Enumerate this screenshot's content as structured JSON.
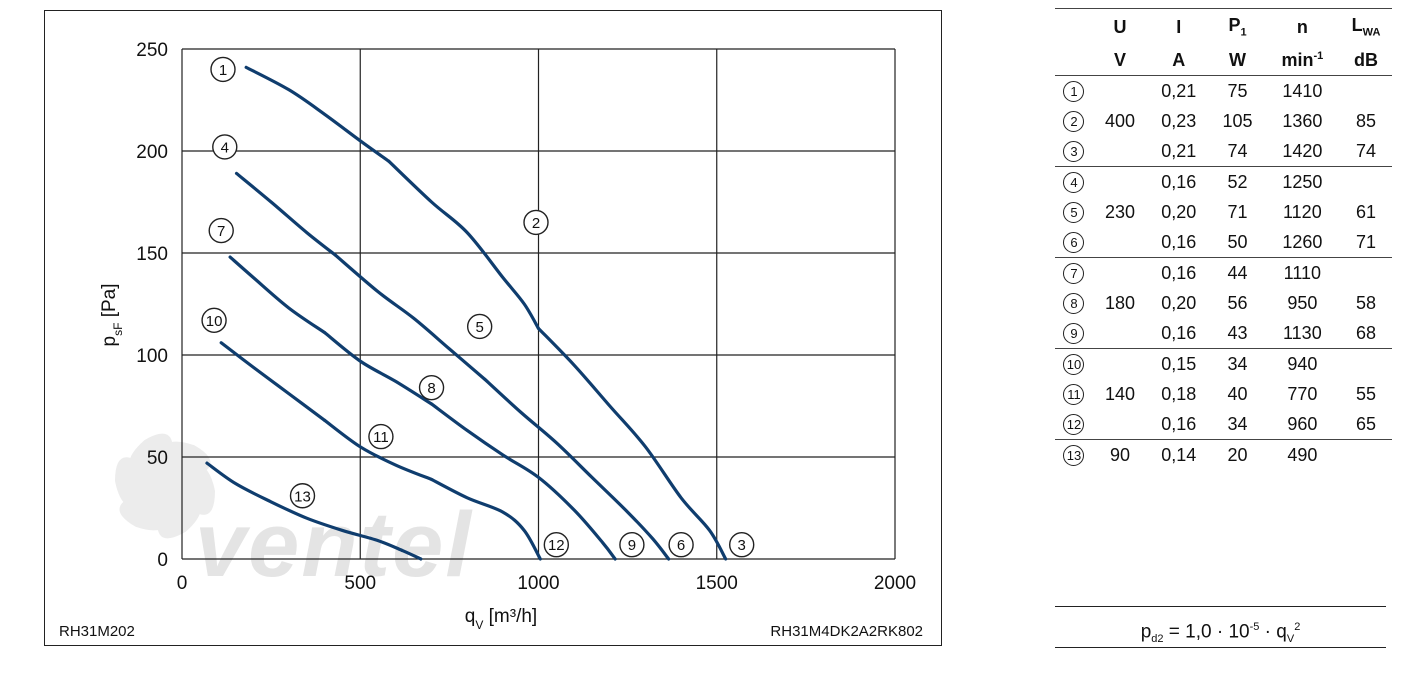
{
  "chart_data": {
    "type": "line",
    "title": "",
    "xlabel": "q",
    "xlabel_sub": "V",
    "xlabel_unit": "[m³/h]",
    "ylabel": "p",
    "ylabel_sub": "sF",
    "ylabel_unit": "[Pa]",
    "xlim": [
      0,
      2000
    ],
    "ylim": [
      0,
      250
    ],
    "xticks": [
      0,
      500,
      1000,
      1500,
      2000
    ],
    "yticks": [
      0,
      50,
      100,
      150,
      200,
      250
    ],
    "grid": true,
    "series": [
      {
        "label": "1",
        "points": [
          [
            180,
            241
          ],
          [
            300,
            230
          ],
          [
            400,
            218
          ],
          [
            500,
            205
          ],
          [
            580,
            195
          ]
        ]
      },
      {
        "label": "2",
        "points": [
          [
            580,
            195
          ],
          [
            700,
            175
          ],
          [
            800,
            160
          ],
          [
            900,
            138
          ],
          [
            960,
            125
          ],
          [
            1000,
            113
          ]
        ]
      },
      {
        "label": "3",
        "points": [
          [
            1000,
            113
          ],
          [
            1100,
            95
          ],
          [
            1200,
            75
          ],
          [
            1300,
            55
          ],
          [
            1400,
            30
          ],
          [
            1480,
            14
          ],
          [
            1525,
            0
          ]
        ]
      },
      {
        "label": "4",
        "points": [
          [
            153,
            189
          ],
          [
            250,
            175
          ],
          [
            350,
            160
          ],
          [
            430,
            149
          ]
        ]
      },
      {
        "label": "5",
        "points": [
          [
            430,
            149
          ],
          [
            550,
            131
          ],
          [
            650,
            118
          ],
          [
            750,
            103
          ],
          [
            850,
            88
          ]
        ]
      },
      {
        "label": "6",
        "points": [
          [
            850,
            88
          ],
          [
            950,
            72
          ],
          [
            1050,
            57
          ],
          [
            1150,
            40
          ],
          [
            1250,
            23
          ],
          [
            1320,
            10
          ],
          [
            1365,
            0
          ]
        ]
      },
      {
        "label": "7",
        "points": [
          [
            135,
            148
          ],
          [
            200,
            138
          ],
          [
            300,
            123
          ],
          [
            400,
            111
          ]
        ]
      },
      {
        "label": "8",
        "points": [
          [
            400,
            111
          ],
          [
            500,
            97
          ],
          [
            600,
            87
          ],
          [
            700,
            76
          ]
        ]
      },
      {
        "label": "9",
        "points": [
          [
            700,
            76
          ],
          [
            800,
            63
          ],
          [
            900,
            51
          ],
          [
            1000,
            40
          ],
          [
            1100,
            24
          ],
          [
            1180,
            8
          ],
          [
            1215,
            0
          ]
        ]
      },
      {
        "label": "10",
        "points": [
          [
            110,
            106
          ],
          [
            200,
            94
          ],
          [
            300,
            81
          ],
          [
            400,
            68
          ]
        ]
      },
      {
        "label": "11",
        "points": [
          [
            400,
            68
          ],
          [
            500,
            55
          ],
          [
            600,
            46
          ],
          [
            700,
            39
          ]
        ]
      },
      {
        "label": "12",
        "points": [
          [
            700,
            39
          ],
          [
            800,
            30
          ],
          [
            900,
            23
          ],
          [
            960,
            14
          ],
          [
            1005,
            0
          ]
        ]
      },
      {
        "label": "13",
        "points": [
          [
            70,
            47
          ],
          [
            150,
            37
          ],
          [
            250,
            28
          ],
          [
            350,
            20
          ],
          [
            450,
            14
          ],
          [
            550,
            9
          ],
          [
            620,
            4
          ],
          [
            670,
            0
          ]
        ]
      }
    ],
    "markers": [
      {
        "label": "1",
        "x": 115,
        "y": 240
      },
      {
        "label": "2",
        "x": 993,
        "y": 165
      },
      {
        "label": "3",
        "x": 1570,
        "y": 7
      },
      {
        "label": "4",
        "x": 120,
        "y": 202
      },
      {
        "label": "5",
        "x": 835,
        "y": 114
      },
      {
        "label": "6",
        "x": 1400,
        "y": 7
      },
      {
        "label": "7",
        "x": 110,
        "y": 161
      },
      {
        "label": "8",
        "x": 700,
        "y": 84
      },
      {
        "label": "9",
        "x": 1262,
        "y": 7
      },
      {
        "label": "10",
        "x": 90,
        "y": 117
      },
      {
        "label": "11",
        "x": 558,
        "y": 60
      },
      {
        "label": "12",
        "x": 1050,
        "y": 7
      },
      {
        "label": "13",
        "x": 338,
        "y": 31
      }
    ]
  },
  "footer_left": "RH31M202",
  "footer_right": "RH31M4DK2A2RK802",
  "watermark": "ventel",
  "table": {
    "headers": [
      {
        "main": "U",
        "sub": ""
      },
      {
        "main": "I",
        "sub": ""
      },
      {
        "main": "P",
        "sub": "1"
      },
      {
        "main": "n",
        "sub": ""
      },
      {
        "main": "L",
        "sub": "WA"
      }
    ],
    "units": [
      "V",
      "A",
      "W",
      "min",
      "dB"
    ],
    "units_sup": [
      "",
      "",
      "",
      "-1",
      ""
    ],
    "rows": [
      {
        "id": "1",
        "U": "",
        "I": "0,21",
        "P1": "75",
        "n": "1410",
        "LWA": ""
      },
      {
        "id": "2",
        "U": "400",
        "I": "0,23",
        "P1": "105",
        "n": "1360",
        "LWA": "85"
      },
      {
        "id": "3",
        "U": "",
        "I": "0,21",
        "P1": "74",
        "n": "1420",
        "LWA": "74"
      },
      {
        "id": "4",
        "U": "",
        "I": "0,16",
        "P1": "52",
        "n": "1250",
        "LWA": ""
      },
      {
        "id": "5",
        "U": "230",
        "I": "0,20",
        "P1": "71",
        "n": "1120",
        "LWA": "61"
      },
      {
        "id": "6",
        "U": "",
        "I": "0,16",
        "P1": "50",
        "n": "1260",
        "LWA": "71"
      },
      {
        "id": "7",
        "U": "",
        "I": "0,16",
        "P1": "44",
        "n": "1110",
        "LWA": ""
      },
      {
        "id": "8",
        "U": "180",
        "I": "0,20",
        "P1": "56",
        "n": "950",
        "LWA": "58"
      },
      {
        "id": "9",
        "U": "",
        "I": "0,16",
        "P1": "43",
        "n": "1130",
        "LWA": "68"
      },
      {
        "id": "10",
        "U": "",
        "I": "0,15",
        "P1": "34",
        "n": "940",
        "LWA": ""
      },
      {
        "id": "11",
        "U": "140",
        "I": "0,18",
        "P1": "40",
        "n": "770",
        "LWA": "55"
      },
      {
        "id": "12",
        "U": "",
        "I": "0,16",
        "P1": "34",
        "n": "960",
        "LWA": "65"
      },
      {
        "id": "13",
        "U": "90",
        "I": "0,14",
        "P1": "20",
        "n": "490",
        "LWA": ""
      }
    ],
    "group_end_rows": [
      3,
      6,
      9,
      12
    ]
  },
  "formula": {
    "lhs": "p",
    "lhs_sub": "d2",
    "mid": " = 1,0 · 10",
    "exp": "-5",
    "mult": " · q",
    "q_sub": "V",
    "q_sup": "2"
  }
}
